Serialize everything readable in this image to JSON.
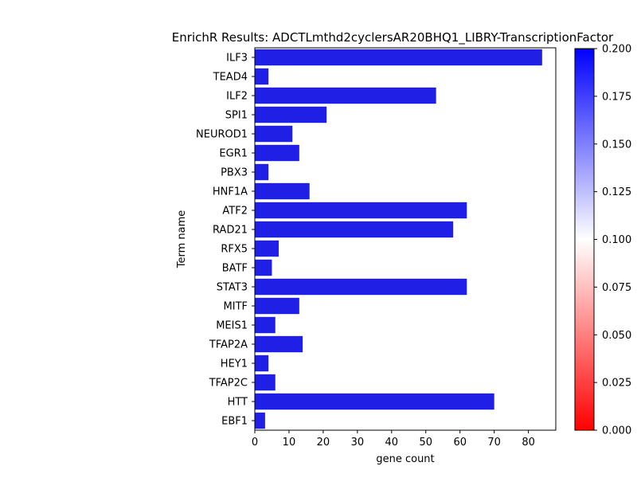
{
  "chart_data": {
    "type": "bar",
    "orientation": "horizontal",
    "title": "EnrichR Results: ADCTLmthd2cyclersAR20BHQ1_LIBRY-TranscriptionFactor",
    "xlabel": "gene count",
    "ylabel": "Term name",
    "xlim": [
      0,
      88
    ],
    "x_ticks": [
      0,
      10,
      20,
      30,
      40,
      50,
      60,
      70,
      80
    ],
    "grid": false,
    "bar_color": "#1f1fe6",
    "categories": [
      "ILF3",
      "TEAD4",
      "ILF2",
      "SPI1",
      "NEUROD1",
      "EGR1",
      "PBX3",
      "HNF1A",
      "ATF2",
      "RAD21",
      "RFX5",
      "BATF",
      "STAT3",
      "MITF",
      "MEIS1",
      "TFAP2A",
      "HEY1",
      "TFAP2C",
      "HTT",
      "EBF1"
    ],
    "values": [
      84,
      4,
      53,
      21,
      11,
      13,
      4,
      16,
      62,
      58,
      7,
      5,
      62,
      13,
      6,
      14,
      4,
      6,
      70,
      3
    ],
    "colorbar": {
      "range": [
        0.0,
        0.2
      ],
      "ticks": [
        "0.000",
        "0.025",
        "0.050",
        "0.075",
        "0.100",
        "0.125",
        "0.150",
        "0.175",
        "0.200"
      ],
      "colors": [
        "#ff0000",
        "#ffffff",
        "#0000ff"
      ]
    }
  }
}
